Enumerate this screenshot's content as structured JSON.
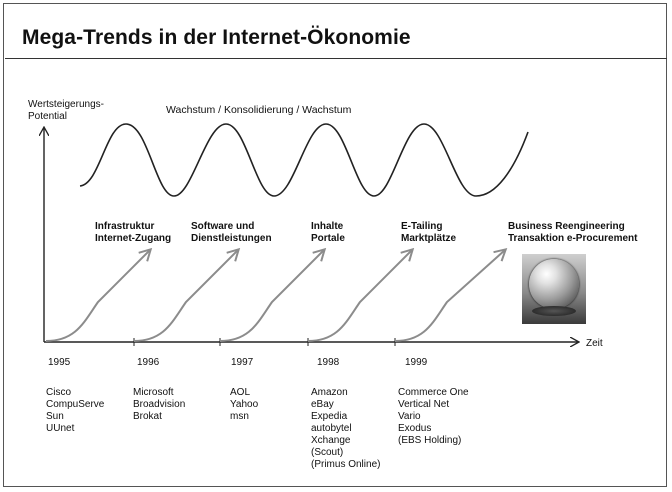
{
  "title": "Mega-Trends in der Internet-Ökonomie",
  "y_axis_label": [
    "Wertsteigerungs-",
    "Potential"
  ],
  "x_axis_label": "Zeit",
  "wave_label": "Wachstum / Konsolidierung / Wachstum",
  "stages": [
    {
      "line1": "Infrastruktur",
      "line2": "Internet-Zugang"
    },
    {
      "line1": "Software und",
      "line2": "Dienstleistungen"
    },
    {
      "line1": "Inhalte",
      "line2": "Portale"
    },
    {
      "line1": "E-Tailing",
      "line2": "Marktplätze"
    },
    {
      "line1": "Business Reengineering",
      "line2": "Transaktion e-Procurement"
    }
  ],
  "years": [
    "1995",
    "1996",
    "1997",
    "1998",
    "1999"
  ],
  "companies": [
    [
      "Cisco",
      "CompuServe",
      "Sun",
      "UUnet"
    ],
    [
      "Microsoft",
      "Broadvision",
      "Brokat"
    ],
    [
      "AOL",
      "Yahoo",
      "msn"
    ],
    [
      "Amazon",
      "eBay",
      "Expedia",
      "autobytel",
      "Xchange",
      "(Scout)",
      "(Primus Online)"
    ],
    [
      "Commerce One",
      "Vertical Net",
      "Vario",
      "Exodus",
      "(EBS Holding)"
    ]
  ],
  "icons": {
    "crystal_ball": "crystal-ball-image"
  },
  "colors": {
    "arrow": "#8c8c8c",
    "line": "#222222"
  }
}
